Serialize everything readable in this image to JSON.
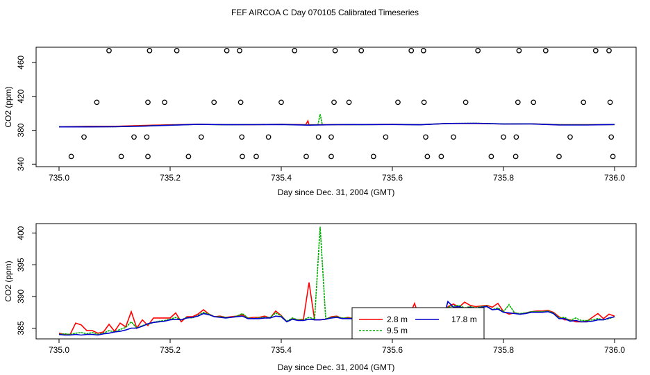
{
  "title": "FEF AIRCOA C  Day 070105  Calibrated Timeseries",
  "chart_data": [
    {
      "type": "line",
      "xlabel": "Day since Dec. 31, 2004 (GMT)",
      "ylabel": "CO2 (ppm)",
      "xlim": [
        735.0,
        736.0
      ],
      "ylim": [
        337,
        478
      ],
      "xticks": [
        "735.0",
        "735.2",
        "735.4",
        "735.6",
        "735.8",
        "736.0"
      ],
      "yticks": [
        "340",
        "380",
        "420",
        "460"
      ],
      "x": [
        735.0,
        735.05,
        735.1,
        735.15,
        735.2,
        735.25,
        735.3,
        735.35,
        735.4,
        735.45,
        735.5,
        735.55,
        735.6,
        735.65,
        735.7,
        735.75,
        735.8,
        735.85,
        735.9,
        735.95,
        736.0
      ],
      "series": [
        {
          "name": "2.8 m",
          "color": "#ff0000",
          "values": [
            384.0,
            384.6,
            384.6,
            385.6,
            386.4,
            387.1,
            386.6,
            386.7,
            387.0,
            386.1,
            386.7,
            386.8,
            386.9,
            386.6,
            388.0,
            388.0,
            387.4,
            387.6,
            386.5,
            386.6,
            386.8
          ]
        },
        {
          "name": "9.5 m",
          "color": "#00b000",
          "values": [
            384.0,
            384.2,
            384.2,
            385.0,
            386.0,
            387.0,
            386.5,
            386.7,
            386.9,
            386.2,
            386.6,
            386.7,
            386.9,
            386.6,
            388.0,
            388.2,
            387.5,
            387.6,
            386.5,
            386.4,
            386.8
          ]
        },
        {
          "name": "17.8 m",
          "color": "#0000cc",
          "values": [
            384.0,
            384.0,
            384.1,
            384.8,
            385.9,
            386.9,
            386.5,
            386.6,
            386.8,
            386.0,
            386.6,
            386.7,
            386.8,
            386.4,
            388.0,
            388.2,
            387.3,
            387.5,
            386.3,
            386.2,
            386.8
          ]
        }
      ],
      "spikes": [
        {
          "series": "2.8 m",
          "x": 735.448,
          "y": 391
        },
        {
          "series": "9.5 m",
          "x": 735.47,
          "y": 399
        }
      ],
      "points": [
        {
          "x": 735.09,
          "y": 474
        },
        {
          "x": 735.163,
          "y": 474
        },
        {
          "x": 735.212,
          "y": 474
        },
        {
          "x": 735.302,
          "y": 474
        },
        {
          "x": 735.325,
          "y": 474
        },
        {
          "x": 735.424,
          "y": 474
        },
        {
          "x": 735.497,
          "y": 474
        },
        {
          "x": 735.544,
          "y": 474
        },
        {
          "x": 735.634,
          "y": 474
        },
        {
          "x": 735.656,
          "y": 474
        },
        {
          "x": 735.754,
          "y": 474
        },
        {
          "x": 735.828,
          "y": 474
        },
        {
          "x": 735.876,
          "y": 474
        },
        {
          "x": 735.966,
          "y": 474
        },
        {
          "x": 735.99,
          "y": 474
        },
        {
          "x": 735.068,
          "y": 413
        },
        {
          "x": 735.16,
          "y": 413
        },
        {
          "x": 735.19,
          "y": 413
        },
        {
          "x": 735.279,
          "y": 413
        },
        {
          "x": 735.327,
          "y": 413
        },
        {
          "x": 735.4,
          "y": 413
        },
        {
          "x": 735.495,
          "y": 413
        },
        {
          "x": 735.522,
          "y": 413
        },
        {
          "x": 735.61,
          "y": 413
        },
        {
          "x": 735.657,
          "y": 413
        },
        {
          "x": 735.732,
          "y": 413
        },
        {
          "x": 735.826,
          "y": 413
        },
        {
          "x": 735.854,
          "y": 413
        },
        {
          "x": 735.944,
          "y": 413
        },
        {
          "x": 735.992,
          "y": 413
        },
        {
          "x": 735.045,
          "y": 372
        },
        {
          "x": 735.135,
          "y": 372
        },
        {
          "x": 735.158,
          "y": 372
        },
        {
          "x": 735.256,
          "y": 372
        },
        {
          "x": 735.329,
          "y": 372
        },
        {
          "x": 735.377,
          "y": 372
        },
        {
          "x": 735.467,
          "y": 372
        },
        {
          "x": 735.49,
          "y": 372
        },
        {
          "x": 735.588,
          "y": 372
        },
        {
          "x": 735.66,
          "y": 372
        },
        {
          "x": 735.71,
          "y": 372
        },
        {
          "x": 735.8,
          "y": 372
        },
        {
          "x": 735.823,
          "y": 372
        },
        {
          "x": 735.92,
          "y": 372
        },
        {
          "x": 735.994,
          "y": 372
        },
        {
          "x": 735.022,
          "y": 349
        },
        {
          "x": 735.112,
          "y": 349
        },
        {
          "x": 735.16,
          "y": 349
        },
        {
          "x": 735.233,
          "y": 349
        },
        {
          "x": 735.33,
          "y": 349
        },
        {
          "x": 735.355,
          "y": 349
        },
        {
          "x": 735.445,
          "y": 349
        },
        {
          "x": 735.49,
          "y": 349
        },
        {
          "x": 735.566,
          "y": 349
        },
        {
          "x": 735.663,
          "y": 349
        },
        {
          "x": 735.688,
          "y": 349
        },
        {
          "x": 735.778,
          "y": 349
        },
        {
          "x": 735.822,
          "y": 349
        },
        {
          "x": 735.9,
          "y": 349
        },
        {
          "x": 735.997,
          "y": 349
        }
      ]
    },
    {
      "type": "line",
      "xlabel": "Day since Dec. 31, 2004 (GMT)",
      "ylabel": "CO2 (ppm)",
      "xlim": [
        735.0,
        736.0
      ],
      "ylim": [
        383.3,
        401.5
      ],
      "xticks": [
        "735.0",
        "735.2",
        "735.4",
        "735.6",
        "735.8",
        "736.0"
      ],
      "yticks": [
        "385",
        "390",
        "395",
        "400"
      ],
      "legend": {
        "placement": "bottom-center",
        "entries": [
          "2.8 m",
          "9.5 m",
          "17.8 m"
        ]
      },
      "x": [
        735.0,
        735.01,
        735.02,
        735.03,
        735.04,
        735.05,
        735.06,
        735.07,
        735.08,
        735.09,
        735.1,
        735.11,
        735.12,
        735.13,
        735.14,
        735.15,
        735.16,
        735.17,
        735.18,
        735.19,
        735.2,
        735.21,
        735.22,
        735.23,
        735.24,
        735.25,
        735.26,
        735.27,
        735.28,
        735.29,
        735.3,
        735.31,
        735.32,
        735.33,
        735.34,
        735.35,
        735.36,
        735.37,
        735.38,
        735.39,
        735.4,
        735.41,
        735.42,
        735.43,
        735.44,
        735.45,
        735.46,
        735.47,
        735.48,
        735.49,
        735.5,
        735.51,
        735.52,
        735.53,
        735.54,
        735.55,
        735.56,
        735.57,
        735.58,
        735.59,
        735.6,
        735.61,
        735.62,
        735.63,
        735.64,
        735.65,
        735.66,
        735.67,
        735.68,
        735.69,
        735.7,
        735.71,
        735.72,
        735.73,
        735.74,
        735.75,
        735.76,
        735.77,
        735.78,
        735.79,
        735.8,
        735.81,
        735.82,
        735.83,
        735.84,
        735.85,
        735.86,
        735.87,
        735.88,
        735.89,
        735.9,
        735.91,
        735.92,
        735.93,
        735.94,
        735.95,
        735.96,
        735.97,
        735.98,
        735.99,
        736.0
      ],
      "series": [
        {
          "name": "2.8 m",
          "color": "#ff0000",
          "values": [
            384.2,
            384.0,
            384.0,
            385.8,
            385.5,
            384.6,
            384.6,
            384.2,
            384.4,
            385.6,
            384.5,
            385.8,
            385.2,
            387.6,
            385.0,
            386.3,
            385.4,
            386.6,
            386.6,
            386.6,
            386.6,
            387.4,
            386.0,
            386.8,
            386.8,
            387.2,
            387.9,
            387.2,
            386.8,
            386.9,
            386.7,
            386.8,
            386.9,
            387.1,
            386.6,
            386.7,
            386.7,
            386.9,
            386.6,
            387.7,
            387.0,
            386.0,
            386.5,
            386.3,
            386.4,
            392.2,
            386.3,
            386.3,
            386.4,
            386.8,
            386.9,
            386.5,
            386.7,
            386.5,
            387.0,
            386.8,
            387.2,
            386.7,
            386.6,
            386.3,
            387.0,
            386.2,
            386.9,
            386.9,
            388.9,
            386.2,
            386.2,
            386.1,
            385.9,
            386.0,
            388.4,
            388.8,
            388.3,
            389.1,
            388.6,
            388.4,
            388.5,
            388.6,
            388.3,
            388.9,
            387.6,
            387.2,
            387.4,
            387.2,
            387.4,
            387.6,
            387.7,
            387.7,
            387.8,
            387.5,
            386.8,
            386.3,
            386.3,
            386.0,
            386.0,
            386.1,
            386.7,
            387.3,
            386.5,
            387.2,
            386.9
          ]
        },
        {
          "name": "9.5 m",
          "color": "#00b000",
          "values": [
            384.0,
            384.1,
            384.0,
            384.2,
            384.3,
            384.1,
            384.3,
            384.0,
            384.2,
            384.6,
            384.4,
            384.8,
            385.1,
            386.0,
            385.0,
            385.4,
            385.6,
            385.9,
            386.1,
            386.2,
            386.4,
            386.7,
            386.3,
            386.7,
            386.6,
            387.0,
            387.5,
            387.2,
            386.8,
            386.8,
            386.7,
            386.7,
            386.9,
            387.3,
            386.6,
            386.5,
            386.6,
            386.7,
            386.7,
            387.4,
            386.9,
            386.1,
            386.6,
            386.3,
            386.3,
            386.7,
            386.4,
            401.0,
            386.5,
            386.7,
            386.8,
            386.6,
            386.6,
            386.5,
            387.0,
            386.9,
            387.3,
            386.7,
            386.8,
            386.4,
            387.0,
            386.7,
            386.5,
            387.3,
            387.3,
            386.4,
            386.3,
            386.0,
            385.9,
            386.4,
            388.3,
            388.5,
            388.6,
            388.2,
            388.4,
            388.2,
            388.4,
            388.5,
            387.9,
            388.2,
            387.6,
            388.7,
            387.4,
            387.3,
            387.4,
            387.6,
            387.6,
            387.6,
            387.7,
            387.4,
            386.6,
            386.7,
            386.2,
            386.6,
            386.2,
            386.2,
            386.3,
            386.5,
            386.3,
            386.5,
            386.8
          ]
        },
        {
          "name": "17.8 m",
          "color": "#0000cc",
          "values": [
            384.0,
            383.9,
            383.9,
            384.0,
            383.9,
            384.0,
            384.0,
            383.9,
            384.1,
            384.2,
            384.4,
            384.5,
            384.7,
            385.0,
            385.0,
            385.3,
            385.7,
            385.9,
            386.0,
            386.1,
            386.3,
            386.4,
            386.3,
            386.6,
            386.7,
            386.9,
            387.3,
            387.1,
            386.8,
            386.7,
            386.6,
            386.7,
            386.8,
            386.9,
            386.5,
            386.5,
            386.5,
            386.6,
            386.6,
            386.9,
            386.8,
            386.0,
            386.4,
            386.2,
            386.2,
            386.4,
            386.3,
            386.3,
            386.4,
            386.6,
            386.7,
            386.5,
            386.5,
            386.5,
            386.8,
            386.8,
            387.0,
            386.7,
            386.7,
            386.4,
            386.8,
            386.6,
            386.5,
            386.8,
            386.8,
            386.3,
            386.2,
            386.0,
            385.9,
            386.1,
            389.2,
            388.3,
            388.4,
            388.1,
            388.3,
            388.1,
            388.3,
            388.4,
            387.9,
            388.0,
            387.5,
            387.4,
            387.3,
            387.2,
            387.3,
            387.5,
            387.5,
            387.5,
            387.6,
            387.3,
            386.5,
            386.5,
            386.1,
            386.2,
            386.0,
            386.0,
            386.1,
            386.3,
            386.3,
            386.6,
            386.8
          ]
        }
      ]
    }
  ]
}
